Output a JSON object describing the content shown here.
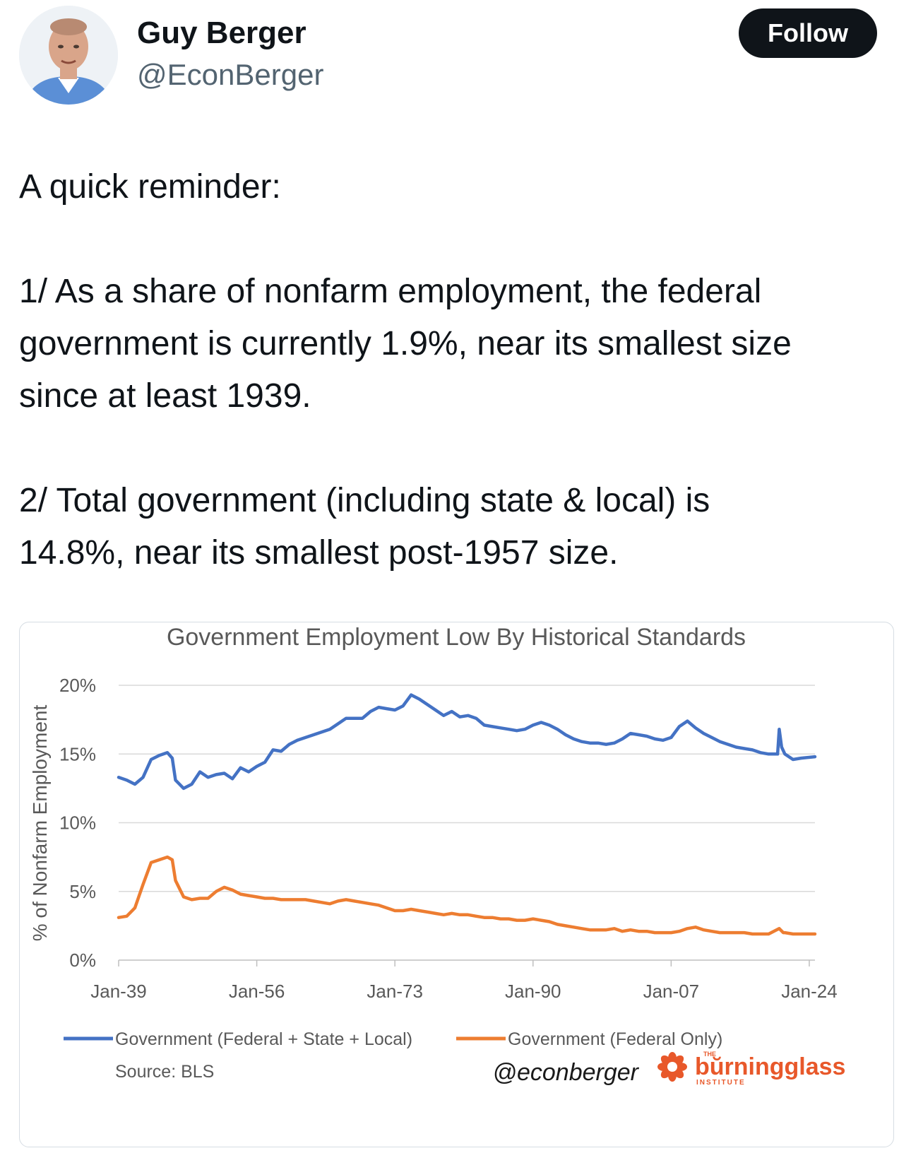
{
  "author": {
    "name": "Guy Berger",
    "handle": "@EconBerger",
    "follow_label": "Follow"
  },
  "tweet": {
    "paragraphs": [
      [
        "A quick reminder:"
      ],
      [
        "1/ As a share of nonfarm employment, the federal",
        "government is currently 1.9%, near its smallest size",
        "since at least 1939."
      ],
      [
        "2/ Total government (including state & local) is",
        "14.8%, near its smallest post-1957 size."
      ]
    ]
  },
  "chart_data": {
    "type": "line",
    "title": "Government Employment Low By Historical Standards",
    "ylabel": "% of Nonfarm Employment",
    "xlabel": "",
    "ylim": [
      0,
      20
    ],
    "xlim": [
      1939,
      2024.7
    ],
    "y_ticks": [
      "0%",
      "5%",
      "10%",
      "15%",
      "20%"
    ],
    "x_ticks": [
      {
        "label": "Jan-39",
        "x": 1939
      },
      {
        "label": "Jan-56",
        "x": 1956
      },
      {
        "label": "Jan-73",
        "x": 1973
      },
      {
        "label": "Jan-90",
        "x": 1990
      },
      {
        "label": "Jan-07",
        "x": 2007
      },
      {
        "label": "Jan-24",
        "x": 2024
      }
    ],
    "grid": true,
    "legend": "bottom",
    "series": [
      {
        "name": "Government (Federal + State + Local)",
        "color": "#4472C4",
        "points": [
          [
            1939,
            13.3
          ],
          [
            1940,
            13.1
          ],
          [
            1941,
            12.8
          ],
          [
            1942,
            13.3
          ],
          [
            1943,
            14.6
          ],
          [
            1944,
            14.9
          ],
          [
            1945,
            15.1
          ],
          [
            1945.6,
            14.7
          ],
          [
            1946,
            13.1
          ],
          [
            1947,
            12.5
          ],
          [
            1948,
            12.8
          ],
          [
            1949,
            13.7
          ],
          [
            1950,
            13.3
          ],
          [
            1951,
            13.5
          ],
          [
            1952,
            13.6
          ],
          [
            1953,
            13.2
          ],
          [
            1954,
            14.0
          ],
          [
            1955,
            13.7
          ],
          [
            1956,
            14.1
          ],
          [
            1957,
            14.4
          ],
          [
            1958,
            15.3
          ],
          [
            1959,
            15.2
          ],
          [
            1960,
            15.7
          ],
          [
            1961,
            16.0
          ],
          [
            1962,
            16.2
          ],
          [
            1963,
            16.4
          ],
          [
            1964,
            16.6
          ],
          [
            1965,
            16.8
          ],
          [
            1966,
            17.2
          ],
          [
            1967,
            17.6
          ],
          [
            1968,
            17.6
          ],
          [
            1969,
            17.6
          ],
          [
            1970,
            18.1
          ],
          [
            1971,
            18.4
          ],
          [
            1972,
            18.3
          ],
          [
            1973,
            18.2
          ],
          [
            1974,
            18.5
          ],
          [
            1975,
            19.3
          ],
          [
            1976,
            19.0
          ],
          [
            1977,
            18.6
          ],
          [
            1978,
            18.2
          ],
          [
            1979,
            17.8
          ],
          [
            1980,
            18.1
          ],
          [
            1981,
            17.7
          ],
          [
            1982,
            17.8
          ],
          [
            1983,
            17.6
          ],
          [
            1984,
            17.1
          ],
          [
            1985,
            17.0
          ],
          [
            1986,
            16.9
          ],
          [
            1987,
            16.8
          ],
          [
            1988,
            16.7
          ],
          [
            1989,
            16.8
          ],
          [
            1990,
            17.1
          ],
          [
            1991,
            17.3
          ],
          [
            1992,
            17.1
          ],
          [
            1993,
            16.8
          ],
          [
            1994,
            16.4
          ],
          [
            1995,
            16.1
          ],
          [
            1996,
            15.9
          ],
          [
            1997,
            15.8
          ],
          [
            1998,
            15.8
          ],
          [
            1999,
            15.7
          ],
          [
            2000,
            15.8
          ],
          [
            2001,
            16.1
          ],
          [
            2002,
            16.5
          ],
          [
            2003,
            16.4
          ],
          [
            2004,
            16.3
          ],
          [
            2005,
            16.1
          ],
          [
            2006,
            16.0
          ],
          [
            2007,
            16.2
          ],
          [
            2008,
            17.0
          ],
          [
            2009,
            17.4
          ],
          [
            2010,
            16.9
          ],
          [
            2011,
            16.5
          ],
          [
            2012,
            16.2
          ],
          [
            2013,
            15.9
          ],
          [
            2014,
            15.7
          ],
          [
            2015,
            15.5
          ],
          [
            2016,
            15.4
          ],
          [
            2017,
            15.3
          ],
          [
            2018,
            15.1
          ],
          [
            2019,
            15.0
          ],
          [
            2020.1,
            15.0
          ],
          [
            2020.3,
            16.8
          ],
          [
            2020.6,
            15.5
          ],
          [
            2021,
            15.0
          ],
          [
            2022,
            14.6
          ],
          [
            2023,
            14.7
          ],
          [
            2024.7,
            14.8
          ]
        ]
      },
      {
        "name": "Government (Federal Only)",
        "color": "#ED7D31",
        "points": [
          [
            1939,
            3.1
          ],
          [
            1940,
            3.2
          ],
          [
            1941,
            3.8
          ],
          [
            1942,
            5.5
          ],
          [
            1943,
            7.1
          ],
          [
            1944,
            7.3
          ],
          [
            1945,
            7.5
          ],
          [
            1945.6,
            7.3
          ],
          [
            1946,
            5.8
          ],
          [
            1947,
            4.6
          ],
          [
            1948,
            4.4
          ],
          [
            1949,
            4.5
          ],
          [
            1950,
            4.5
          ],
          [
            1951,
            5.0
          ],
          [
            1952,
            5.3
          ],
          [
            1953,
            5.1
          ],
          [
            1954,
            4.8
          ],
          [
            1955,
            4.7
          ],
          [
            1956,
            4.6
          ],
          [
            1957,
            4.5
          ],
          [
            1958,
            4.5
          ],
          [
            1959,
            4.4
          ],
          [
            1960,
            4.4
          ],
          [
            1961,
            4.4
          ],
          [
            1962,
            4.4
          ],
          [
            1963,
            4.3
          ],
          [
            1964,
            4.2
          ],
          [
            1965,
            4.1
          ],
          [
            1966,
            4.3
          ],
          [
            1967,
            4.4
          ],
          [
            1968,
            4.3
          ],
          [
            1969,
            4.2
          ],
          [
            1970,
            4.1
          ],
          [
            1971,
            4.0
          ],
          [
            1972,
            3.8
          ],
          [
            1973,
            3.6
          ],
          [
            1974,
            3.6
          ],
          [
            1975,
            3.7
          ],
          [
            1976,
            3.6
          ],
          [
            1977,
            3.5
          ],
          [
            1978,
            3.4
          ],
          [
            1979,
            3.3
          ],
          [
            1980,
            3.4
          ],
          [
            1981,
            3.3
          ],
          [
            1982,
            3.3
          ],
          [
            1983,
            3.2
          ],
          [
            1984,
            3.1
          ],
          [
            1985,
            3.1
          ],
          [
            1986,
            3.0
          ],
          [
            1987,
            3.0
          ],
          [
            1988,
            2.9
          ],
          [
            1989,
            2.9
          ],
          [
            1990,
            3.0
          ],
          [
            1991,
            2.9
          ],
          [
            1992,
            2.8
          ],
          [
            1993,
            2.6
          ],
          [
            1994,
            2.5
          ],
          [
            1995,
            2.4
          ],
          [
            1996,
            2.3
          ],
          [
            1997,
            2.2
          ],
          [
            1998,
            2.2
          ],
          [
            1999,
            2.2
          ],
          [
            2000,
            2.3
          ],
          [
            2001,
            2.1
          ],
          [
            2002,
            2.2
          ],
          [
            2003,
            2.1
          ],
          [
            2004,
            2.1
          ],
          [
            2005,
            2.0
          ],
          [
            2006,
            2.0
          ],
          [
            2007,
            2.0
          ],
          [
            2008,
            2.1
          ],
          [
            2009,
            2.3
          ],
          [
            2010,
            2.4
          ],
          [
            2011,
            2.2
          ],
          [
            2012,
            2.1
          ],
          [
            2013,
            2.0
          ],
          [
            2014,
            2.0
          ],
          [
            2015,
            2.0
          ],
          [
            2016,
            2.0
          ],
          [
            2017,
            1.9
          ],
          [
            2018,
            1.9
          ],
          [
            2019,
            1.9
          ],
          [
            2020.3,
            2.3
          ],
          [
            2020.8,
            2.0
          ],
          [
            2021,
            2.0
          ],
          [
            2022,
            1.9
          ],
          [
            2023,
            1.9
          ],
          [
            2024.7,
            1.9
          ]
        ]
      }
    ],
    "source": "Source: BLS",
    "watermark": "@econberger",
    "logo": {
      "the": "THE",
      "text": "bŭrningglass",
      "sub": "INSTITUTE"
    }
  }
}
